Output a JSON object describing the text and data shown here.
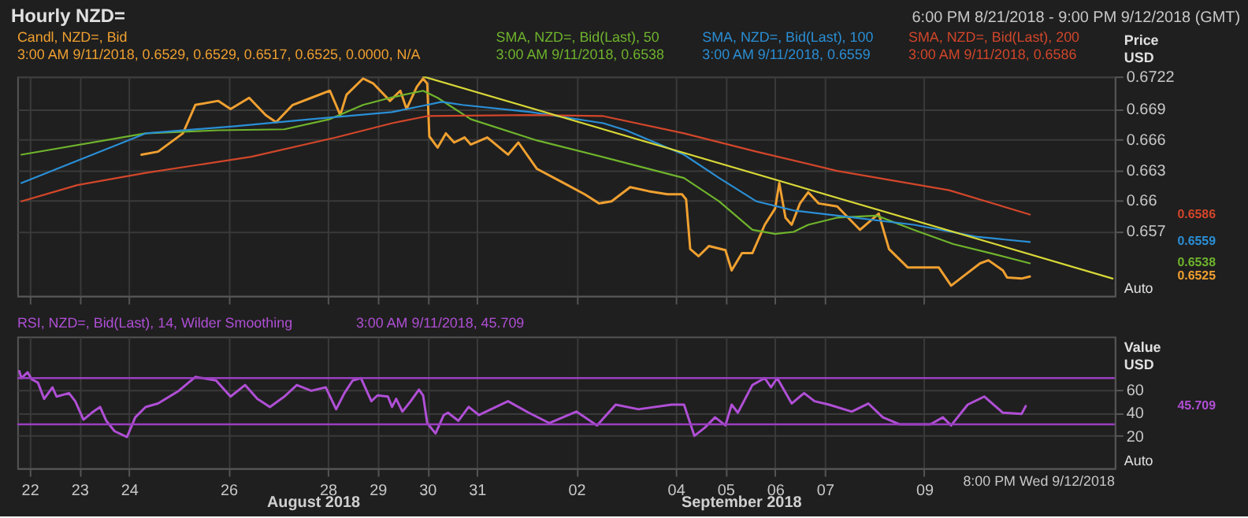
{
  "chart_data": [
    {
      "type": "line",
      "title": "Hourly NZD=",
      "subtitle": "6:00 PM 8/21/2018 - 9:00 PM 9/12/2018 (GMT)",
      "ylabel": "Price USD",
      "xlim": [
        "2018-08-21T18:00",
        "2018-09-12T20:00"
      ],
      "ylim": [
        0.6506,
        0.6722
      ],
      "xticks": [
        {
          "value": "2018-08-22",
          "label": null
        },
        {
          "value": "2018-08-23",
          "label": null
        },
        {
          "value": "2018-08-24",
          "label": null
        },
        {
          "value": "2018-08-26",
          "label": null
        },
        {
          "value": "2018-08-28",
          "label": null
        },
        {
          "value": "2018-08-29",
          "label": null
        },
        {
          "value": "2018-08-30",
          "label": null
        },
        {
          "value": "2018-08-31",
          "label": null
        },
        {
          "value": "2018-09-02",
          "label": null
        },
        {
          "value": "2018-09-04",
          "label": null
        },
        {
          "value": "2018-09-05",
          "label": null
        },
        {
          "value": "2018-09-06",
          "label": null
        },
        {
          "value": "2018-09-07",
          "label": null
        },
        {
          "value": "2018-09-09",
          "label": null
        }
      ],
      "yticks": [
        0.657,
        0.66,
        0.663,
        0.666,
        0.669,
        0.6722
      ],
      "grid": true,
      "tick_labels": "y",
      "series": [
        {
          "name": "Candl, NZD=, Bid",
          "color": "#f0a030",
          "x": [
            "2018-08-24T06:00",
            "2018-08-24T14:00",
            "2018-08-25T02:00",
            "2018-08-25T08:00",
            "2018-08-25T19:00",
            "2018-08-26T01:00",
            "2018-08-26T10:00",
            "2018-08-26T18:00",
            "2018-08-26T23:00",
            "2018-08-27T07:00",
            "2018-08-27T16:00",
            "2018-08-28T01:00",
            "2018-08-28T06:00",
            "2018-08-28T09:00",
            "2018-08-28T17:00",
            "2018-08-28T22:00",
            "2018-08-29T06:00",
            "2018-08-29T11:00",
            "2018-08-29T14:00",
            "2018-08-29T19:00",
            "2018-08-29T22:00",
            "2018-08-30T00:00",
            "2018-08-30T01:00",
            "2018-08-30T05:00",
            "2018-08-30T09:00",
            "2018-08-30T13:00",
            "2018-08-30T18:00",
            "2018-08-30T21:00",
            "2018-08-31T05:00",
            "2018-08-31T15:00",
            "2018-08-31T20:00",
            "2018-09-01T05:00",
            "2018-09-01T18:00",
            "2018-09-02T04:00",
            "2018-09-02T11:00",
            "2018-09-02T17:00",
            "2018-09-03T02:00",
            "2018-09-03T11:00",
            "2018-09-03T20:00",
            "2018-09-04T03:00",
            "2018-09-04T05:00",
            "2018-09-04T07:00",
            "2018-09-04T11:00",
            "2018-09-04T16:00",
            "2018-09-05T00:00",
            "2018-09-05T03:00",
            "2018-09-05T08:00",
            "2018-09-05T13:00",
            "2018-09-05T19:00",
            "2018-09-06T00:00",
            "2018-09-06T02:00",
            "2018-09-06T05:00",
            "2018-09-06T08:00",
            "2018-09-06T12:00",
            "2018-09-06T16:00",
            "2018-09-06T21:00",
            "2018-09-07T06:00",
            "2018-09-07T17:00",
            "2018-09-08T02:00",
            "2018-09-08T07:00",
            "2018-09-08T16:00",
            "2018-09-09T07:00",
            "2018-09-09T13:00",
            "2018-09-09T20:00",
            "2018-09-10T03:00",
            "2018-09-10T07:00",
            "2018-09-10T14:00",
            "2018-09-10T16:00",
            "2018-09-10T23:00",
            "2018-09-11T03:00"
          ],
          "values": [
            0.6645,
            0.6648,
            0.6666,
            0.6694,
            0.6698,
            0.669,
            0.6701,
            0.6684,
            0.6677,
            0.6694,
            0.6701,
            0.6708,
            0.6684,
            0.6704,
            0.672,
            0.6715,
            0.6698,
            0.6708,
            0.669,
            0.6712,
            0.672,
            0.6715,
            0.6663,
            0.6652,
            0.6666,
            0.6657,
            0.6662,
            0.6655,
            0.6662,
            0.6645,
            0.6657,
            0.6631,
            0.6617,
            0.6606,
            0.6597,
            0.6599,
            0.6613,
            0.6609,
            0.6606,
            0.6606,
            0.6601,
            0.6552,
            0.6545,
            0.6555,
            0.6551,
            0.6531,
            0.6548,
            0.6548,
            0.6576,
            0.6592,
            0.6617,
            0.6583,
            0.6576,
            0.6597,
            0.6608,
            0.6597,
            0.6594,
            0.6571,
            0.6587,
            0.6552,
            0.6534,
            0.6534,
            0.6516,
            0.6527,
            0.6538,
            0.6541,
            0.6531,
            0.6524,
            0.6523,
            0.6525
          ]
        },
        {
          "name": "SMA, NZD=, Bid(Last), 50",
          "color": "#6fb42c",
          "x": [
            "2018-08-21T20:00",
            "2018-08-24T08:00",
            "2018-08-25T19:00",
            "2018-08-27T03:00",
            "2018-08-28T01:00",
            "2018-08-28T17:00",
            "2018-08-29T06:00",
            "2018-08-29T22:00",
            "2018-08-30T05:00",
            "2018-08-30T21:00",
            "2018-09-01T05:00",
            "2018-09-02T16:00",
            "2018-09-04T04:00",
            "2018-09-04T21:00",
            "2018-09-05T13:00",
            "2018-09-06T00:00",
            "2018-09-06T09:00",
            "2018-09-06T16:00",
            "2018-09-07T06:00",
            "2018-09-08T01:00",
            "2018-09-08T19:00",
            "2018-09-09T14:00",
            "2018-09-10T08:00",
            "2018-09-11T03:00"
          ],
          "values": [
            0.6645,
            0.6666,
            0.6669,
            0.667,
            0.668,
            0.6694,
            0.6701,
            0.6708,
            0.6701,
            0.668,
            0.6659,
            0.6641,
            0.6622,
            0.6599,
            0.6571,
            0.6567,
            0.6569,
            0.6576,
            0.6583,
            0.6585,
            0.6571,
            0.6557,
            0.6548,
            0.6538
          ]
        },
        {
          "name": "SMA, NZD=, Bid(Last), 100",
          "color": "#2a8fd6",
          "x": [
            "2018-08-21T20:00",
            "2018-08-24T08:00",
            "2018-08-26T03:00",
            "2018-08-27T16:00",
            "2018-08-29T07:00",
            "2018-08-30T00:00",
            "2018-08-30T07:00",
            "2018-08-30T17:00",
            "2018-09-01T02:00",
            "2018-09-02T13:00",
            "2018-09-03T00:00",
            "2018-09-04T04:00",
            "2018-09-04T21:00",
            "2018-09-05T15:00",
            "2018-09-06T09:00",
            "2018-09-07T06:00",
            "2018-09-08T19:00",
            "2018-09-10T02:00",
            "2018-09-11T03:00"
          ],
          "values": [
            0.6617,
            0.6666,
            0.6673,
            0.668,
            0.6687,
            0.6694,
            0.6697,
            0.6694,
            0.6687,
            0.6676,
            0.6669,
            0.6645,
            0.6622,
            0.6599,
            0.659,
            0.6585,
            0.6576,
            0.6564,
            0.6559
          ]
        },
        {
          "name": "SMA, NZD=, Bid(Last), 200",
          "color": "#d2462a",
          "x": [
            "2018-08-21T20:00",
            "2018-08-22T23:00",
            "2018-08-24T08:00",
            "2018-08-26T11:00",
            "2018-08-28T04:00",
            "2018-08-29T07:00",
            "2018-08-30T00:00",
            "2018-09-01T02:00",
            "2018-09-02T13:00",
            "2018-09-04T04:00",
            "2018-09-05T15:00",
            "2018-09-07T06:00",
            "2018-09-09T12:00",
            "2018-09-11T03:00"
          ],
          "values": [
            0.6599,
            0.6615,
            0.6627,
            0.6643,
            0.6662,
            0.6676,
            0.6683,
            0.6684,
            0.6683,
            0.6666,
            0.6648,
            0.6629,
            0.661,
            0.6586
          ]
        },
        {
          "color": "#d8d838",
          "x": [
            "2018-08-29T22:00",
            "2018-09-12T19:00"
          ],
          "values": [
            0.6722,
            0.6523
          ]
        }
      ],
      "annotations": [
        "3:00 AM 9/11/2018, 0.6529, 0.6529, 0.6517, 0.6525, 0.0000, N/A",
        "3:00 AM 9/11/2018, 0.6538",
        "3:00 AM 9/11/2018, 0.6559",
        "3:00 AM 9/11/2018, 0.6586",
        "0.6525",
        "0.6538",
        "0.6559",
        "0.6586",
        "Auto"
      ]
    },
    {
      "type": "line",
      "ylabel": "Value USD",
      "xlim": [
        "2018-08-21T18:00",
        "2018-09-12T20:00"
      ],
      "ylim": [
        -8,
        106
      ],
      "xticks": [
        {
          "value": "2018-08-22",
          "label": "22"
        },
        {
          "value": "2018-08-23",
          "label": "23"
        },
        {
          "value": "2018-08-24",
          "label": "24"
        },
        {
          "value": "2018-08-26",
          "label": "26"
        },
        {
          "value": "2018-08-28",
          "label": "28"
        },
        {
          "value": "2018-08-29",
          "label": "29"
        },
        {
          "value": "2018-08-30",
          "label": "30"
        },
        {
          "value": "2018-08-31",
          "label": "31"
        },
        {
          "value": "2018-09-02",
          "label": "02"
        },
        {
          "value": "2018-09-04",
          "label": "04"
        },
        {
          "value": "2018-09-05",
          "label": "05"
        },
        {
          "value": "2018-09-06",
          "label": "06"
        },
        {
          "value": "2018-09-07",
          "label": "07"
        },
        {
          "value": "2018-09-09",
          "label": "09"
        }
      ],
      "yticks": [
        20,
        40,
        60
      ],
      "grid": true,
      "ref_lines": [
        {
          "axis": "y",
          "value": 70,
          "color": "#9a3fc0"
        },
        {
          "axis": "y",
          "value": 30,
          "color": "#9a3fc0"
        }
      ],
      "series": [
        {
          "name": "RSI, NZD=, Bid(Last),  14, Wilder Smoothing",
          "color": "#b04fd6",
          "x": [
            "2018-08-21T19:00",
            "2018-08-21T20:00",
            "2018-08-21T23:00",
            "2018-08-22T01:00",
            "2018-08-22T04:00",
            "2018-08-22T07:00",
            "2018-08-22T11:00",
            "2018-08-22T13:00",
            "2018-08-22T19:00",
            "2018-08-22T22:00",
            "2018-08-23T02:00",
            "2018-08-23T06:00",
            "2018-08-23T10:00",
            "2018-08-23T13:00",
            "2018-08-23T17:00",
            "2018-08-23T23:00",
            "2018-08-24T03:00",
            "2018-08-24T08:00",
            "2018-08-24T14:00",
            "2018-08-25T00:00",
            "2018-08-25T08:00",
            "2018-08-25T18:00",
            "2018-08-26T01:00",
            "2018-08-26T08:00",
            "2018-08-26T14:00",
            "2018-08-26T20:00",
            "2018-08-27T03:00",
            "2018-08-27T09:00",
            "2018-08-27T16:00",
            "2018-08-27T23:00",
            "2018-08-28T04:00",
            "2018-08-28T08:00",
            "2018-08-28T12:00",
            "2018-08-28T16:00",
            "2018-08-28T21:00",
            "2018-08-29T00:00",
            "2018-08-29T05:00",
            "2018-08-29T07:00",
            "2018-08-29T09:00",
            "2018-08-29T12:00",
            "2018-08-29T16:00",
            "2018-08-29T20:00",
            "2018-08-29T22:00",
            "2018-08-30T00:00",
            "2018-08-30T04:00",
            "2018-08-30T08:00",
            "2018-08-30T10:00",
            "2018-08-30T15:00",
            "2018-08-30T20:00",
            "2018-08-31T01:00",
            "2018-08-31T15:00",
            "2018-09-01T01:00",
            "2018-09-01T11:00",
            "2018-09-02T00:00",
            "2018-09-02T10:00",
            "2018-09-02T19:00",
            "2018-09-03T06:00",
            "2018-09-03T22:00",
            "2018-09-04T04:00",
            "2018-09-04T09:00",
            "2018-09-04T14:00",
            "2018-09-04T19:00",
            "2018-09-05T00:00",
            "2018-09-05T03:00",
            "2018-09-05T06:00",
            "2018-09-05T13:00",
            "2018-09-05T19:00",
            "2018-09-05T22:00",
            "2018-09-06T01:00",
            "2018-09-06T08:00",
            "2018-09-06T14:00",
            "2018-09-06T19:00",
            "2018-09-07T02:00",
            "2018-09-07T13:00",
            "2018-09-07T21:00",
            "2018-09-08T04:00",
            "2018-09-08T12:00",
            "2018-09-09T03:00",
            "2018-09-09T09:00",
            "2018-09-09T13:00",
            "2018-09-09T21:00",
            "2018-09-10T05:00",
            "2018-09-10T14:00",
            "2018-09-10T23:00",
            "2018-09-11T01:00"
          ],
          "values": [
            76,
            70,
            75,
            69,
            66,
            52,
            62,
            54,
            57,
            50,
            34,
            40,
            45,
            33,
            24,
            19,
            36,
            45,
            48,
            59,
            71,
            68,
            54,
            64,
            52,
            45,
            54,
            64,
            59,
            62,
            43,
            57,
            68,
            70,
            50,
            55,
            54,
            45,
            52,
            41,
            50,
            60,
            55,
            31,
            22,
            38,
            40,
            33,
            45,
            38,
            50,
            40,
            31,
            41,
            29,
            47,
            43,
            47,
            47,
            20,
            27,
            36,
            29,
            47,
            40,
            64,
            70,
            62,
            70,
            48,
            57,
            50,
            47,
            41,
            48,
            36,
            30,
            30,
            36,
            29,
            47,
            54,
            40,
            39,
            45.709
          ]
        }
      ],
      "annotations": [
        "3:00 AM 9/11/2018, 45.709",
        "45.709",
        "Auto",
        "August 2018",
        "September 2018",
        "8:00 PM Wed 9/12/2018"
      ]
    }
  ]
}
